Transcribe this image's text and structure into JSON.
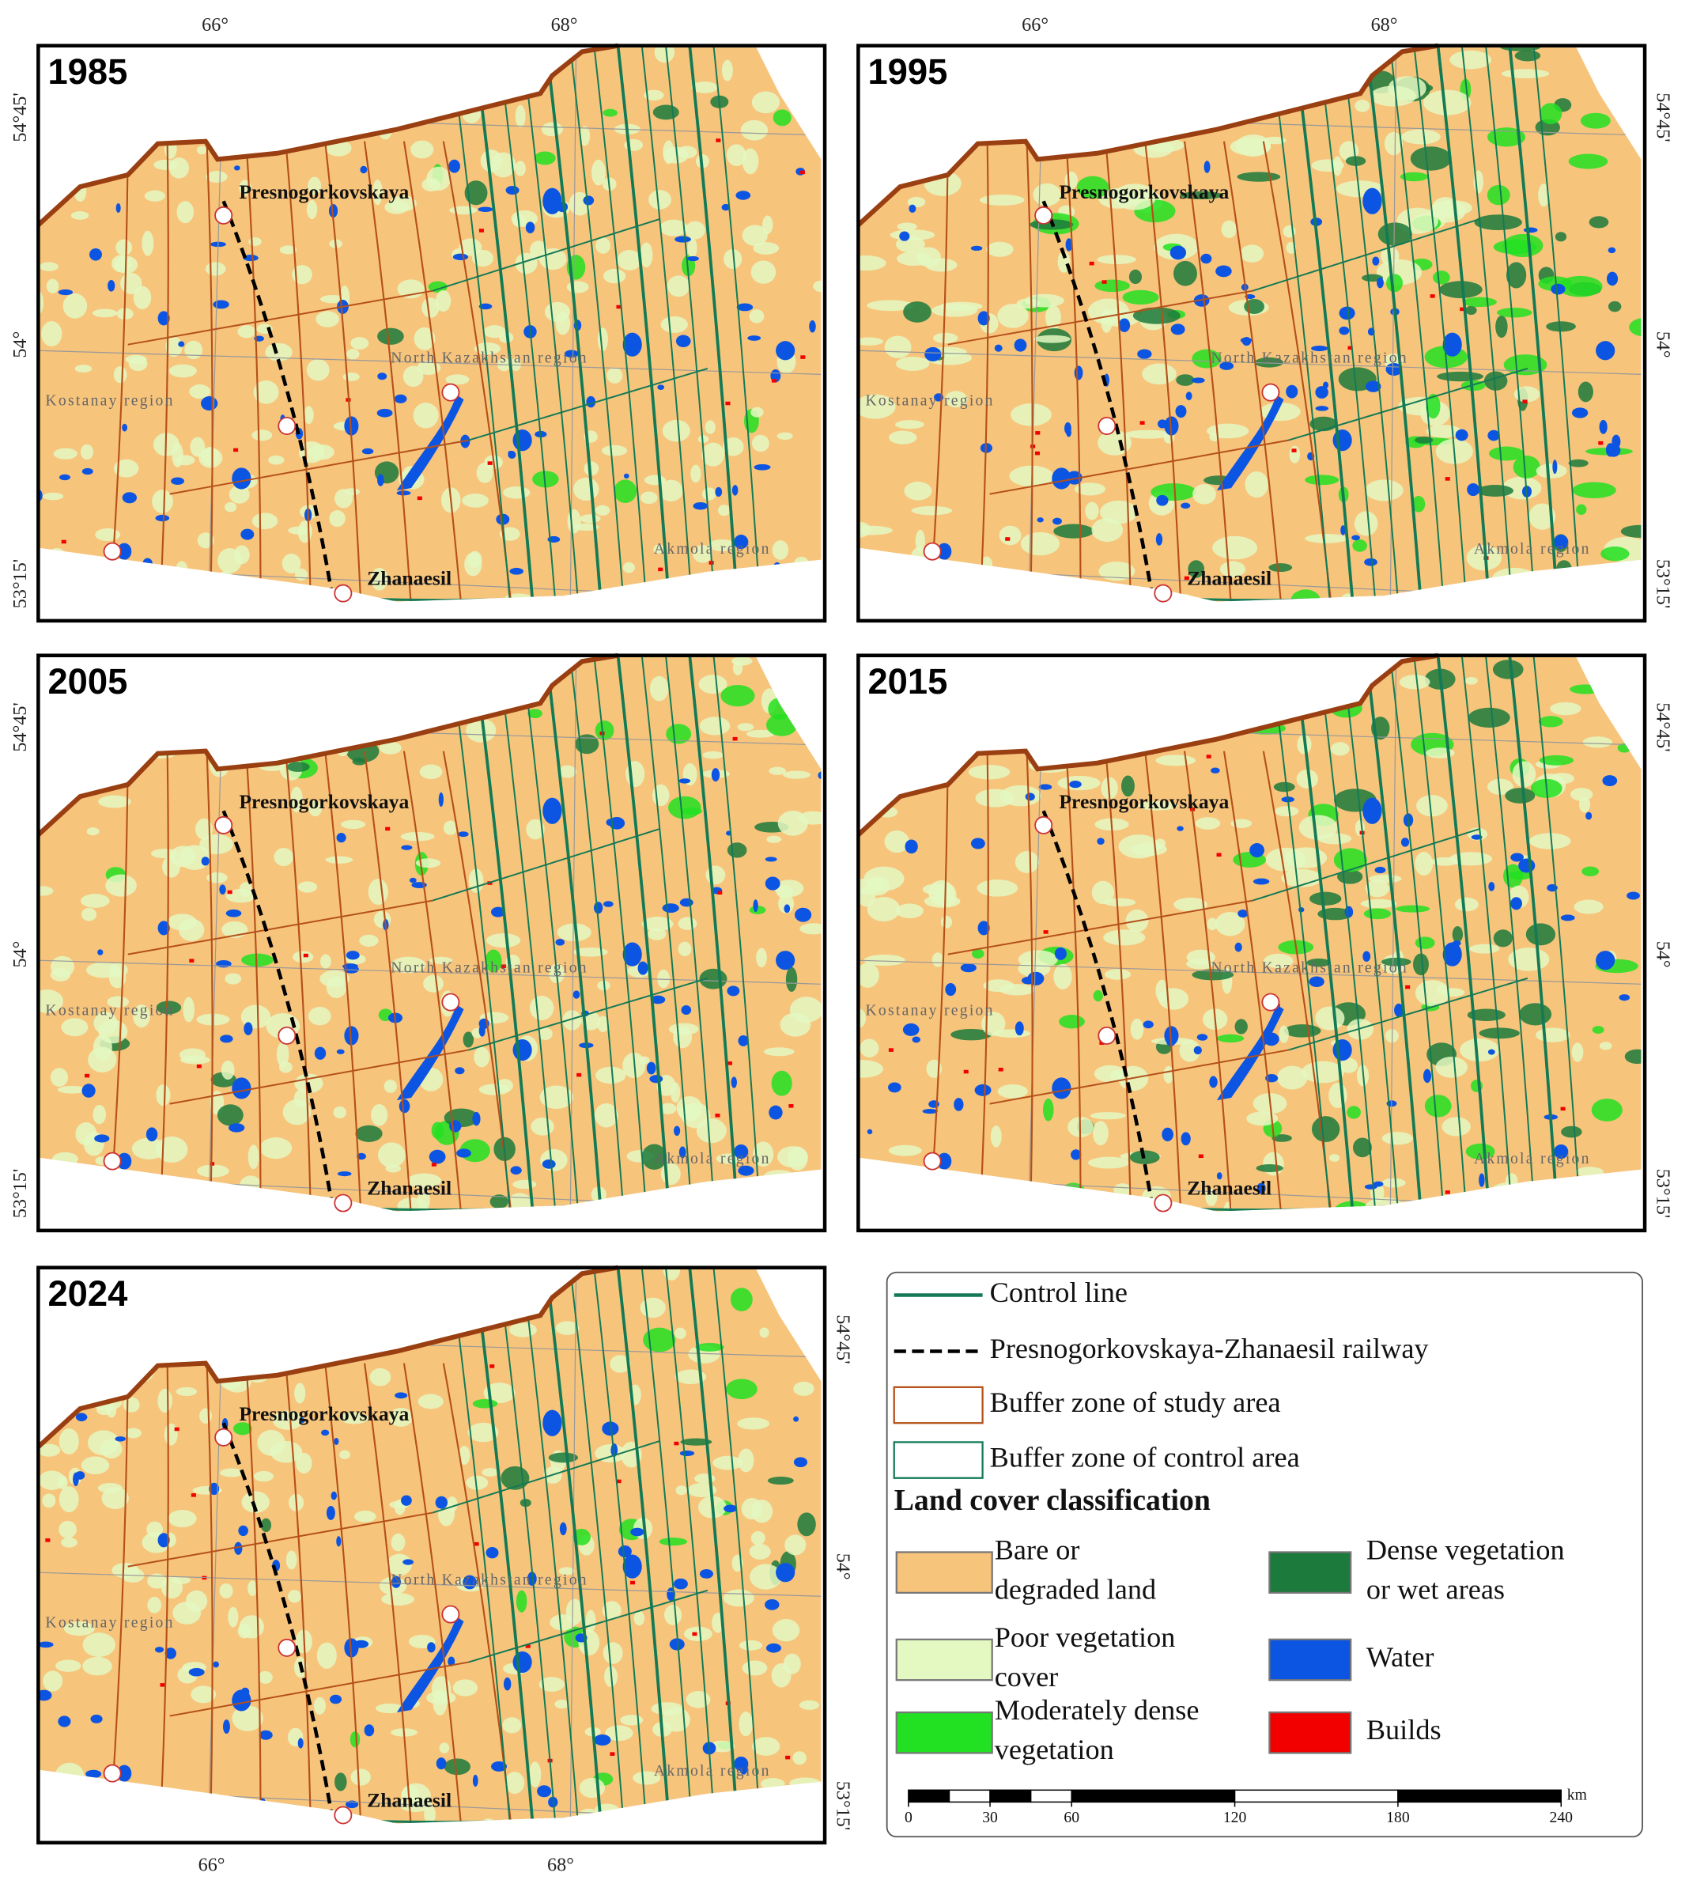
{
  "panels": [
    {
      "year": "1985",
      "top_labels": [
        "66°",
        "68°"
      ],
      "left_labels": [
        "54°45'",
        "54°",
        "53°15'"
      ],
      "places": [
        "Presnogorkovskaya",
        "Zhanaesil",
        "North Kazakhstan region",
        "Kostanay region",
        "Akmola region"
      ]
    },
    {
      "year": "1995",
      "top_labels": [
        "66°",
        "68°"
      ],
      "right_labels": [
        "54°45'",
        "54°",
        "53°15'"
      ],
      "places": [
        "Presnogorkovskaya",
        "Zhanaesil",
        "North Kazakhstan region",
        "Kostanay region",
        "Akmola region"
      ]
    },
    {
      "year": "2005",
      "left_labels": [
        "54°45'",
        "54°",
        "53°15'"
      ],
      "places": [
        "Presnogorkovskaya",
        "Zhanaesil",
        "North Kazakhstan region",
        "Kostanay region",
        "Akmola region"
      ]
    },
    {
      "year": "2015",
      "right_labels": [
        "54°45'",
        "54°",
        "53°15'"
      ],
      "places": [
        "Presnogorkovskaya",
        "Zhanaesil",
        "North Kazakhstan region",
        "Kostanay region",
        "Akmola region"
      ]
    },
    {
      "year": "2024",
      "right_labels": [
        "54°45'",
        "54°",
        "53°15'"
      ],
      "bottom_labels": [
        "66°",
        "68°"
      ],
      "places": [
        "Presnogorkovskaya",
        "Zhanaesil",
        "North Kazakhstan region",
        "Kostanay region",
        "Akmola region"
      ]
    }
  ],
  "legend": {
    "lines": [
      "Control line",
      "Presnogorkovskaya-Zhanaesil railway",
      "Buffer zone of study area",
      "Buffer zone of control area"
    ],
    "heading": "Land cover classification",
    "classes": [
      {
        "lines": [
          "Bare or",
          "degraded land"
        ],
        "color": "#f7c47c"
      },
      {
        "lines": [
          "Poor vegetation",
          "cover"
        ],
        "color": "#e4f8c2"
      },
      {
        "lines": [
          "Moderately dense",
          "vegetation"
        ],
        "color": "#22e022"
      },
      {
        "lines": [
          "Dense vegetation",
          "or wet areas"
        ],
        "color": "#1b7a3c"
      },
      {
        "lines": [
          "Water"
        ],
        "color": "#0c55e2"
      },
      {
        "lines": [
          "Builds"
        ],
        "color": "#f20000"
      }
    ],
    "scale_bar": {
      "ticks": [
        0,
        30,
        60,
        120,
        180,
        240
      ],
      "unit": "km"
    }
  }
}
